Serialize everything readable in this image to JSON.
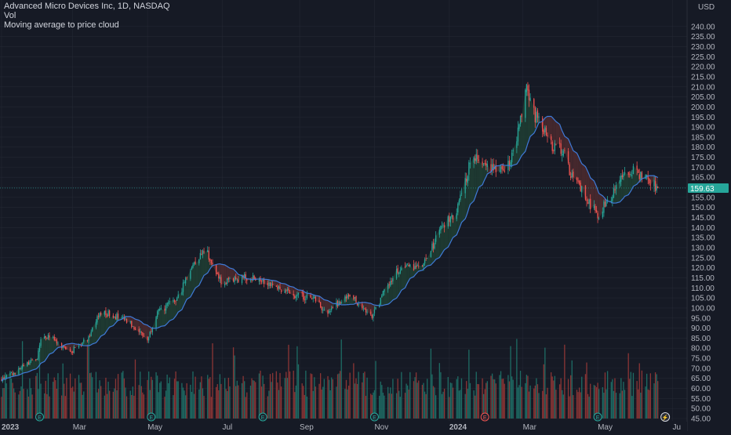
{
  "legend": {
    "title": "Advanced Micro Devices Inc, 1D, NASDAQ",
    "indicator_1": "Vol",
    "indicator_2": "Moving average to price cloud"
  },
  "colors": {
    "background": "#161a25",
    "grid": "#232733",
    "up": "#26a69a",
    "down": "#ef5350",
    "vol_up": "#1e6b64",
    "vol_down": "#8a3535",
    "ma": "#3f7ad8",
    "cloud_up": "#1f3d33",
    "cloud_down": "#4a2a2f",
    "axis_text": "#b2b5be",
    "price_tag": "#26a69a"
  },
  "chart_data": {
    "type": "candlestick",
    "currency_label": "USD",
    "last_price_label": "159.63",
    "ylim": [
      45,
      245
    ],
    "y_ticks": [
      "240.00",
      "235.00",
      "230.00",
      "225.00",
      "220.00",
      "215.00",
      "210.00",
      "205.00",
      "200.00",
      "195.00",
      "190.00",
      "185.00",
      "180.00",
      "175.00",
      "170.00",
      "165.00",
      "160.00",
      "155.00",
      "150.00",
      "145.00",
      "140.00",
      "135.00",
      "130.00",
      "125.00",
      "120.00",
      "115.00",
      "110.00",
      "105.00",
      "100.00",
      "95.00",
      "90.00",
      "85.00",
      "80.00",
      "75.00",
      "70.00",
      "65.00",
      "60.00",
      "55.00",
      "50.00",
      "45.00"
    ],
    "x_ticks": [
      {
        "label": "2023",
        "day": 0
      },
      {
        "label": "Mar",
        "day": 58
      },
      {
        "label": "May",
        "day": 119
      },
      {
        "label": "Jul",
        "day": 180
      },
      {
        "label": "Sep",
        "day": 243
      },
      {
        "label": "Nov",
        "day": 304
      },
      {
        "label": "2024",
        "day": 365
      },
      {
        "label": "Mar",
        "day": 425
      },
      {
        "label": "May",
        "day": 486
      },
      {
        "label": "Ju",
        "day": 547
      }
    ],
    "x_range_days": [
      0,
      555
    ],
    "anchors": [
      {
        "day": 0,
        "close": 64.5
      },
      {
        "day": 10,
        "close": 67.5
      },
      {
        "day": 20,
        "close": 72
      },
      {
        "day": 29,
        "close": 75
      },
      {
        "day": 33,
        "close": 86
      },
      {
        "day": 40,
        "close": 86
      },
      {
        "day": 48,
        "close": 80
      },
      {
        "day": 58,
        "close": 79
      },
      {
        "day": 70,
        "close": 85
      },
      {
        "day": 80,
        "close": 97
      },
      {
        "day": 90,
        "close": 97
      },
      {
        "day": 100,
        "close": 94
      },
      {
        "day": 110,
        "close": 90
      },
      {
        "day": 119,
        "close": 84
      },
      {
        "day": 126,
        "close": 97
      },
      {
        "day": 133,
        "close": 100
      },
      {
        "day": 144,
        "close": 105
      },
      {
        "day": 152,
        "close": 118
      },
      {
        "day": 160,
        "close": 125
      },
      {
        "day": 167,
        "close": 130
      },
      {
        "day": 172,
        "close": 120
      },
      {
        "day": 180,
        "close": 112
      },
      {
        "day": 195,
        "close": 115
      },
      {
        "day": 210,
        "close": 115
      },
      {
        "day": 220,
        "close": 112
      },
      {
        "day": 232,
        "close": 108
      },
      {
        "day": 243,
        "close": 106
      },
      {
        "day": 255,
        "close": 105
      },
      {
        "day": 265,
        "close": 97
      },
      {
        "day": 273,
        "close": 102
      },
      {
        "day": 285,
        "close": 106
      },
      {
        "day": 295,
        "close": 100
      },
      {
        "day": 300,
        "close": 95
      },
      {
        "day": 304,
        "close": 98
      },
      {
        "day": 312,
        "close": 108
      },
      {
        "day": 322,
        "close": 118
      },
      {
        "day": 335,
        "close": 121
      },
      {
        "day": 341,
        "close": 120
      },
      {
        "day": 348,
        "close": 125
      },
      {
        "day": 357,
        "close": 140
      },
      {
        "day": 362,
        "close": 142
      },
      {
        "day": 368,
        "close": 146
      },
      {
        "day": 372,
        "close": 150
      },
      {
        "day": 378,
        "close": 162
      },
      {
        "day": 383,
        "close": 178
      },
      {
        "day": 392,
        "close": 172
      },
      {
        "day": 402,
        "close": 170
      },
      {
        "day": 410,
        "close": 170
      },
      {
        "day": 418,
        "close": 178
      },
      {
        "day": 425,
        "close": 200
      },
      {
        "day": 428,
        "close": 212
      },
      {
        "day": 433,
        "close": 198
      },
      {
        "day": 440,
        "close": 190
      },
      {
        "day": 450,
        "close": 180
      },
      {
        "day": 458,
        "close": 178
      },
      {
        "day": 465,
        "close": 165
      },
      {
        "day": 470,
        "close": 162
      },
      {
        "day": 476,
        "close": 155
      },
      {
        "day": 482,
        "close": 150
      },
      {
        "day": 486,
        "close": 146
      },
      {
        "day": 492,
        "close": 152
      },
      {
        "day": 500,
        "close": 158
      },
      {
        "day": 506,
        "close": 165
      },
      {
        "day": 515,
        "close": 168
      },
      {
        "day": 523,
        "close": 165
      },
      {
        "day": 530,
        "close": 162
      },
      {
        "day": 535,
        "close": 159.63
      }
    ],
    "volume_ylim_millions": [
      0,
      190
    ],
    "earnings_markers": [
      {
        "day": 31,
        "label": "E",
        "color": "#26a69a"
      },
      {
        "day": 122,
        "label": "E",
        "color": "#26a69a"
      },
      {
        "day": 213,
        "label": "E",
        "color": "#26a69a"
      },
      {
        "day": 304,
        "label": "E",
        "color": "#26a69a"
      },
      {
        "day": 394,
        "label": "E",
        "color": "#ef5350"
      },
      {
        "day": 486,
        "label": "E",
        "color": "#26a69a"
      }
    ],
    "event_marker": {
      "day": 541,
      "label": "⚡"
    }
  }
}
